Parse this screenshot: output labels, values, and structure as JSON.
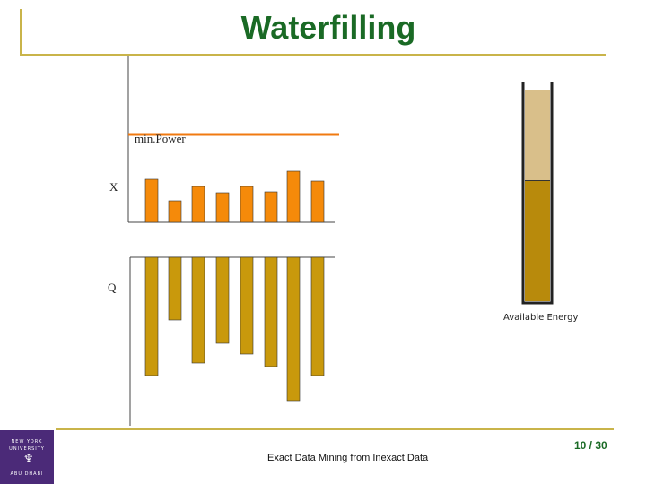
{
  "slide": {
    "title": "Waterfilling",
    "footer_text": "Exact Data Mining from Inexact Data",
    "page_number": "10 / 30"
  },
  "logo": {
    "top_text": "NEW YORK UNIVERSITY",
    "bottom_text": "ABU DHABI"
  },
  "diagram": {
    "min_power_label": "min.Power",
    "x_label": "X",
    "q_label": "Q",
    "available_energy_label": "Available Energy",
    "min_power_level": 98,
    "x_values": [
      48,
      24,
      40,
      33,
      40,
      34,
      57,
      46
    ],
    "q_values": [
      132,
      70,
      118,
      96,
      108,
      122,
      160,
      132
    ],
    "energy_container": {
      "used_fraction": 0.43,
      "remaining_fraction": 0.57
    },
    "colors": {
      "x_bar": "#f58a0a",
      "q_bar": "#c9990c",
      "min_power_line": "#f07a10",
      "energy_used": "#d9bf8a",
      "energy_remaining": "#b88a0c",
      "accent_line": "#c9b44a",
      "title": "#1a6a25"
    }
  }
}
